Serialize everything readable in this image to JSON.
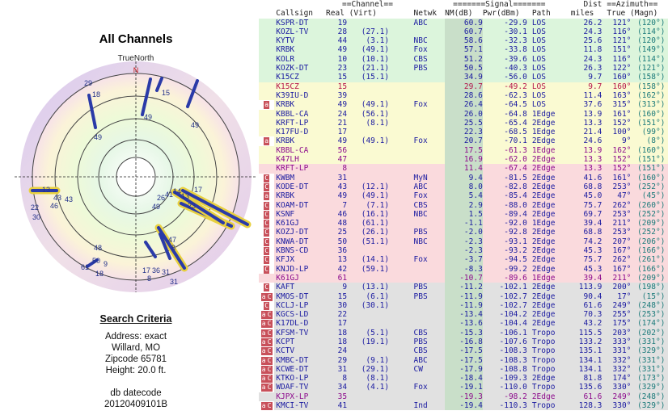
{
  "title": "All Channels",
  "compass": {
    "true_north": "TrueNorth",
    "north": "N"
  },
  "criteria": {
    "heading": "Search Criteria",
    "address": "Address: exact",
    "city": "Willard, MO",
    "zipcode": "Zipcode 65781",
    "height": "Height: 20.0 ft.",
    "datecode_label": "db datecode",
    "datecode": "20120409101B"
  },
  "group_headers": [
    "==Channel==",
    "=======Signal=======",
    "Dist",
    "==Azimuth=="
  ],
  "columns": [
    "Callsign",
    "Real",
    "(Virt)",
    "Netwk",
    "NM(dB)",
    "Pwr(dBm)",
    "Path",
    "miles",
    "True",
    "(Magn)"
  ],
  "colors": {
    "green": "#dcf5dc",
    "yellow": "#fafad2",
    "pink": "#fadadd",
    "gray": "#e1e1e1",
    "blue": "#1a1aa0",
    "red": "#b4144a",
    "purple": "#8c0a8c",
    "nm": "#c9dfc9",
    "marker": "#c8505a"
  },
  "rows": [
    {
      "call": "KSPR-DT",
      "real": "19",
      "virt": "",
      "net": "ABC",
      "nm": "60.9",
      "pwr": "-29.9",
      "path": "LOS",
      "dist": "26.2",
      "tru": "121°",
      "mag": "(120°)",
      "bg": "green",
      "fg": "blue",
      "mark": ""
    },
    {
      "call": "KOZL-TV",
      "real": "28",
      "virt": "(27.1)",
      "net": "",
      "nm": "60.7",
      "pwr": "-30.1",
      "path": "LOS",
      "dist": "24.3",
      "tru": "116°",
      "mag": "(114°)",
      "bg": "green",
      "fg": "blue",
      "mark": ""
    },
    {
      "call": "KYTV",
      "real": "44",
      "virt": "(3.1)",
      "net": "NBC",
      "nm": "58.6",
      "pwr": "-32.3",
      "path": "LOS",
      "dist": "25.6",
      "tru": "121°",
      "mag": "(120°)",
      "bg": "green",
      "fg": "blue",
      "mark": ""
    },
    {
      "call": "KRBK",
      "real": "49",
      "virt": "(49.1)",
      "net": "Fox",
      "nm": "57.1",
      "pwr": "-33.8",
      "path": "LOS",
      "dist": "11.8",
      "tru": "151°",
      "mag": "(149°)",
      "bg": "green",
      "fg": "blue",
      "mark": ""
    },
    {
      "call": "KOLR",
      "real": "10",
      "virt": "(10.1)",
      "net": "CBS",
      "nm": "51.2",
      "pwr": "-39.6",
      "path": "LOS",
      "dist": "24.3",
      "tru": "116°",
      "mag": "(114°)",
      "bg": "green",
      "fg": "blue",
      "mark": ""
    },
    {
      "call": "KOZK-DT",
      "real": "23",
      "virt": "(21.1)",
      "net": "PBS",
      "nm": "50.5",
      "pwr": "-40.3",
      "path": "LOS",
      "dist": "26.3",
      "tru": "122°",
      "mag": "(121°)",
      "bg": "green",
      "fg": "blue",
      "mark": ""
    },
    {
      "call": "K15CZ",
      "real": "15",
      "virt": "(15.1)",
      "net": "",
      "nm": "34.9",
      "pwr": "-56.0",
      "path": "LOS",
      "dist": "9.7",
      "tru": "160°",
      "mag": "(158°)",
      "bg": "green",
      "fg": "blue",
      "mark": ""
    },
    {
      "call": "K15CZ",
      "real": "15",
      "virt": "",
      "net": "",
      "nm": "29.7",
      "pwr": "-49.2",
      "path": "LOS",
      "dist": "9.7",
      "tru": "160°",
      "mag": "(158°)",
      "bg": "yellow",
      "fg": "red",
      "mark": ""
    },
    {
      "call": "K39IU-D",
      "real": "39",
      "virt": "",
      "net": "",
      "nm": "28.6",
      "pwr": "-62.3",
      "path": "LOS",
      "dist": "11.4",
      "tru": "163°",
      "mag": "(162°)",
      "bg": "yellow",
      "fg": "blue",
      "mark": ""
    },
    {
      "call": "KRBK",
      "real": "49",
      "virt": "(49.1)",
      "net": "Fox",
      "nm": "26.4",
      "pwr": "-64.5",
      "path": "LOS",
      "dist": "37.6",
      "tru": "315°",
      "mag": "(313°)",
      "bg": "yellow",
      "fg": "blue",
      "mark": "a"
    },
    {
      "call": "KBBL-CA",
      "real": "24",
      "virt": "(56.1)",
      "net": "",
      "nm": "26.0",
      "pwr": "-64.8",
      "path": "1Edge",
      "dist": "13.9",
      "tru": "161°",
      "mag": "(160°)",
      "bg": "yellow",
      "fg": "blue",
      "mark": ""
    },
    {
      "call": "KRFT-LP",
      "real": "21",
      "virt": "(8.1)",
      "net": "",
      "nm": "25.5",
      "pwr": "-65.4",
      "path": "2Edge",
      "dist": "13.3",
      "tru": "152°",
      "mag": "(151°)",
      "bg": "yellow",
      "fg": "blue",
      "mark": ""
    },
    {
      "call": "K17FU-D",
      "real": "17",
      "virt": "",
      "net": "",
      "nm": "22.3",
      "pwr": "-68.5",
      "path": "1Edge",
      "dist": "21.4",
      "tru": "100°",
      "mag": "(99°)",
      "bg": "yellow",
      "fg": "blue",
      "mark": ""
    },
    {
      "call": "KRBK",
      "real": "49",
      "virt": "(49.1)",
      "net": "Fox",
      "nm": "20.7",
      "pwr": "-70.1",
      "path": "2Edge",
      "dist": "24.6",
      "tru": "9°",
      "mag": "(8°)",
      "bg": "yellow",
      "fg": "blue",
      "mark": "a"
    },
    {
      "call": "KBBL-CA",
      "real": "56",
      "virt": "",
      "net": "",
      "nm": "17.5",
      "pwr": "-61.3",
      "path": "1Edge",
      "dist": "13.9",
      "tru": "162°",
      "mag": "(160°)",
      "bg": "yellow",
      "fg": "purple",
      "mark": ""
    },
    {
      "call": "K47LH",
      "real": "47",
      "virt": "",
      "net": "",
      "nm": "16.9",
      "pwr": "-62.0",
      "path": "2Edge",
      "dist": "13.3",
      "tru": "152°",
      "mag": "(151°)",
      "bg": "yellow",
      "fg": "purple",
      "mark": ""
    },
    {
      "call": "KRFT-LP",
      "real": "8",
      "virt": "",
      "net": "",
      "nm": "11.4",
      "pwr": "-67.4",
      "path": "2Edge",
      "dist": "13.3",
      "tru": "152°",
      "mag": "(151°)",
      "bg": "pink",
      "fg": "purple",
      "mark": ""
    },
    {
      "call": "KWBM",
      "real": "31",
      "virt": "",
      "net": "MyN",
      "nm": "9.4",
      "pwr": "-81.5",
      "path": "2Edge",
      "dist": "41.6",
      "tru": "161°",
      "mag": "(160°)",
      "bg": "pink",
      "fg": "blue",
      "mark": "C"
    },
    {
      "call": "KODE-DT",
      "real": "43",
      "virt": "(12.1)",
      "net": "ABC",
      "nm": "8.0",
      "pwr": "-82.8",
      "path": "2Edge",
      "dist": "68.8",
      "tru": "253°",
      "mag": "(252°)",
      "bg": "pink",
      "fg": "blue",
      "mark": "C"
    },
    {
      "call": "KRBK",
      "real": "49",
      "virt": "(49.1)",
      "net": "Fox",
      "nm": "5.4",
      "pwr": "-85.4",
      "path": "2Edge",
      "dist": "45.0",
      "tru": "47°",
      "mag": "(45°)",
      "bg": "pink",
      "fg": "blue",
      "mark": "a"
    },
    {
      "call": "KOAM-DT",
      "real": "7",
      "virt": "(7.1)",
      "net": "CBS",
      "nm": "2.9",
      "pwr": "-88.0",
      "path": "2Edge",
      "dist": "75.7",
      "tru": "262°",
      "mag": "(260°)",
      "bg": "pink",
      "fg": "blue",
      "mark": "C"
    },
    {
      "call": "KSNF",
      "real": "46",
      "virt": "(16.1)",
      "net": "NBC",
      "nm": "1.5",
      "pwr": "-89.4",
      "path": "2Edge",
      "dist": "69.7",
      "tru": "253°",
      "mag": "(252°)",
      "bg": "pink",
      "fg": "blue",
      "mark": "C"
    },
    {
      "call": "K61GJ",
      "real": "48",
      "virt": "(61.1)",
      "net": "",
      "nm": "-1.1",
      "pwr": "-92.0",
      "path": "1Edge",
      "dist": "39.4",
      "tru": "211°",
      "mag": "(209°)",
      "bg": "pink",
      "fg": "blue",
      "mark": "C"
    },
    {
      "call": "KOZJ-DT",
      "real": "25",
      "virt": "(26.1)",
      "net": "PBS",
      "nm": "-2.0",
      "pwr": "-92.8",
      "path": "2Edge",
      "dist": "68.8",
      "tru": "253°",
      "mag": "(252°)",
      "bg": "pink",
      "fg": "blue",
      "mark": "C"
    },
    {
      "call": "KNWA-DT",
      "real": "50",
      "virt": "(51.1)",
      "net": "NBC",
      "nm": "-2.3",
      "pwr": "-93.1",
      "path": "2Edge",
      "dist": "74.2",
      "tru": "207°",
      "mag": "(206°)",
      "bg": "pink",
      "fg": "blue",
      "mark": "C"
    },
    {
      "call": "KBNS-CD",
      "real": "36",
      "virt": "",
      "net": "",
      "nm": "-2.3",
      "pwr": "-93.2",
      "path": "2Edge",
      "dist": "45.3",
      "tru": "167°",
      "mag": "(166°)",
      "bg": "pink",
      "fg": "blue",
      "mark": "C"
    },
    {
      "call": "KFJX",
      "real": "13",
      "virt": "(14.1)",
      "net": "Fox",
      "nm": "-3.7",
      "pwr": "-94.5",
      "path": "2Edge",
      "dist": "75.7",
      "tru": "262°",
      "mag": "(261°)",
      "bg": "pink",
      "fg": "blue",
      "mark": "C"
    },
    {
      "call": "KNJD-LP",
      "real": "42",
      "virt": "(59.1)",
      "net": "",
      "nm": "-8.3",
      "pwr": "-99.2",
      "path": "2Edge",
      "dist": "45.3",
      "tru": "167°",
      "mag": "(166°)",
      "bg": "pink",
      "fg": "blue",
      "mark": "C"
    },
    {
      "call": "K61GJ",
      "real": "61",
      "virt": "",
      "net": "",
      "nm": "-10.7",
      "pwr": "-89.6",
      "path": "1Edge",
      "dist": "39.4",
      "tru": "211°",
      "mag": "(209°)",
      "bg": "pink",
      "fg": "purple",
      "mark": ""
    },
    {
      "call": "KAFT",
      "real": "9",
      "virt": "(13.1)",
      "net": "PBS",
      "nm": "-11.2",
      "pwr": "-102.1",
      "path": "2Edge",
      "dist": "113.9",
      "tru": "200°",
      "mag": "(198°)",
      "bg": "gray",
      "fg": "blue",
      "mark": "C"
    },
    {
      "call": "KMOS-DT",
      "real": "15",
      "virt": "(6.1)",
      "net": "PBS",
      "nm": "-11.9",
      "pwr": "-102.7",
      "path": "2Edge",
      "dist": "90.4",
      "tru": "17°",
      "mag": "(15°)",
      "bg": "gray",
      "fg": "blue",
      "mark": "aC"
    },
    {
      "call": "KCLJ-LP",
      "real": "30",
      "virt": "(30.1)",
      "net": "",
      "nm": "-11.9",
      "pwr": "-102.7",
      "path": "2Edge",
      "dist": "61.6",
      "tru": "249°",
      "mag": "(248°)",
      "bg": "gray",
      "fg": "blue",
      "mark": "C"
    },
    {
      "call": "KGCS-LD",
      "real": "22",
      "virt": "",
      "net": "",
      "nm": "-13.4",
      "pwr": "-104.2",
      "path": "2Edge",
      "dist": "70.3",
      "tru": "255°",
      "mag": "(253°)",
      "bg": "gray",
      "fg": "blue",
      "mark": "aC"
    },
    {
      "call": "K17DL-D",
      "real": "17",
      "virt": "",
      "net": "",
      "nm": "-13.6",
      "pwr": "-104.4",
      "path": "2Edge",
      "dist": "43.2",
      "tru": "175°",
      "mag": "(174°)",
      "bg": "gray",
      "fg": "blue",
      "mark": "aC"
    },
    {
      "call": "KFSM-TV",
      "real": "18",
      "virt": "(5.1)",
      "net": "CBS",
      "nm": "-15.3",
      "pwr": "-106.1",
      "path": "Tropo",
      "dist": "115.5",
      "tru": "203°",
      "mag": "(202°)",
      "bg": "gray",
      "fg": "blue",
      "mark": "aC"
    },
    {
      "call": "KCPT",
      "real": "18",
      "virt": "(19.1)",
      "net": "PBS",
      "nm": "-16.8",
      "pwr": "-107.6",
      "path": "Tropo",
      "dist": "133.2",
      "tru": "333°",
      "mag": "(331°)",
      "bg": "gray",
      "fg": "blue",
      "mark": "aC"
    },
    {
      "call": "KCTV",
      "real": "24",
      "virt": "",
      "net": "CBS",
      "nm": "-17.5",
      "pwr": "-108.3",
      "path": "Tropo",
      "dist": "135.1",
      "tru": "331°",
      "mag": "(329°)",
      "bg": "gray",
      "fg": "blue",
      "mark": "aC"
    },
    {
      "call": "KMBC-DT",
      "real": "29",
      "virt": "(9.1)",
      "net": "ABC",
      "nm": "-17.5",
      "pwr": "-108.3",
      "path": "Tropo",
      "dist": "134.1",
      "tru": "332°",
      "mag": "(331°)",
      "bg": "gray",
      "fg": "blue",
      "mark": "aC"
    },
    {
      "call": "KCWE-DT",
      "real": "31",
      "virt": "(29.1)",
      "net": "CW",
      "nm": "-17.9",
      "pwr": "-108.8",
      "path": "Tropo",
      "dist": "134.1",
      "tru": "332°",
      "mag": "(331°)",
      "bg": "gray",
      "fg": "blue",
      "mark": "aC"
    },
    {
      "call": "KTKO-LP",
      "real": "8",
      "virt": "(8.1)",
      "net": "",
      "nm": "-18.4",
      "pwr": "-109.3",
      "path": "2Edge",
      "dist": "81.8",
      "tru": "174°",
      "mag": "(173°)",
      "bg": "gray",
      "fg": "blue",
      "mark": "aC"
    },
    {
      "call": "WDAF-TV",
      "real": "34",
      "virt": "(4.1)",
      "net": "Fox",
      "nm": "-19.1",
      "pwr": "-110.0",
      "path": "Tropo",
      "dist": "135.6",
      "tru": "330°",
      "mag": "(329°)",
      "bg": "gray",
      "fg": "blue",
      "mark": "aC"
    },
    {
      "call": "KJPX-LP",
      "real": "35",
      "virt": "",
      "net": "",
      "nm": "-19.3",
      "pwr": "-98.2",
      "path": "2Edge",
      "dist": "61.6",
      "tru": "249°",
      "mag": "(248°)",
      "bg": "gray",
      "fg": "purple",
      "mark": ""
    },
    {
      "call": "KMCI-TV",
      "real": "41",
      "virt": "",
      "net": "Ind",
      "nm": "-19.4",
      "pwr": "-110.3",
      "path": "Tropo",
      "dist": "128.3",
      "tru": "330°",
      "mag": "(329°)",
      "bg": "gray",
      "fg": "blue",
      "mark": "aC"
    }
  ],
  "radar_labels": [
    "15",
    "49",
    "49",
    "49",
    "17",
    "23",
    "29",
    "18",
    "13",
    "43",
    "22",
    "46",
    "30",
    "43",
    "49",
    "31",
    "48",
    "61",
    "50",
    "9",
    "18",
    "17",
    "8",
    "36",
    "31",
    "47",
    "8",
    "26",
    "41",
    "14",
    "13"
  ]
}
